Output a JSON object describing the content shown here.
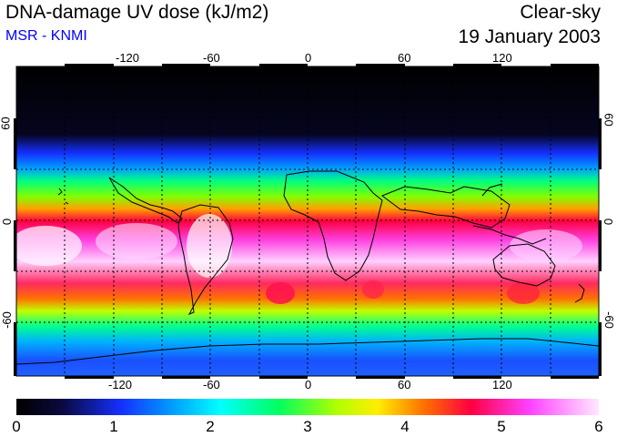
{
  "header": {
    "title": "DNA-damage UV dose (kJ/m2)",
    "subtitle": "MSR - KNMI",
    "mode": "Clear-sky",
    "date": "19 January 2003"
  },
  "colors": {
    "subtitle": "#0000ff",
    "colorbar_stops": [
      "#000000",
      "#0a0a40",
      "#1530ff",
      "#00a0ff",
      "#00ffff",
      "#00ff60",
      "#b0ff00",
      "#ffee00",
      "#ff7000",
      "#ff0040",
      "#ff40ff",
      "#ffe8ff"
    ]
  },
  "map": {
    "lon_ticks": [
      "-120",
      "-60",
      "0",
      "60",
      "120"
    ],
    "lat_ticks": [
      "60",
      "0",
      "-60"
    ],
    "lat_ticks_right": [
      "60",
      "0",
      "-60"
    ]
  },
  "colorbar": {
    "labels": [
      "0",
      "1",
      "2",
      "3",
      "4",
      "5",
      "6"
    ]
  }
}
